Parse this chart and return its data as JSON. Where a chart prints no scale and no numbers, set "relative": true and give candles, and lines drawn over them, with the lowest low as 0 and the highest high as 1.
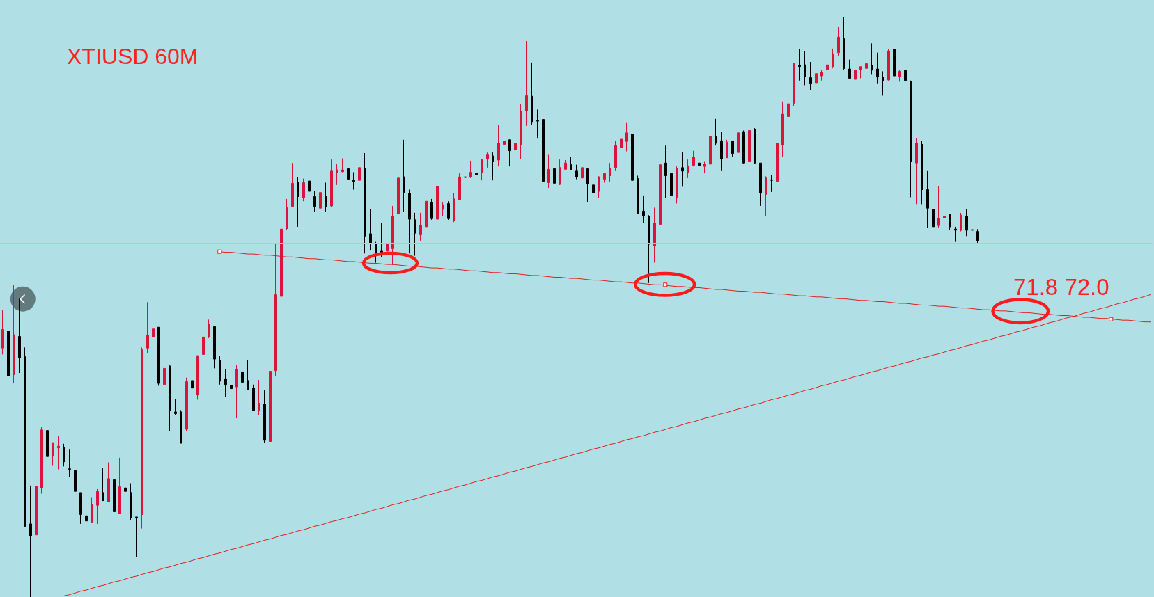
{
  "chart_data": {
    "type": "candlestick",
    "title": "XTIUSD 60M",
    "relative": true,
    "categories": [
      null,
      null,
      null,
      null,
      null,
      null,
      null,
      null,
      null,
      null,
      null,
      null,
      null,
      null,
      null,
      null,
      null,
      null,
      null,
      null,
      null,
      null,
      null,
      null,
      null,
      null,
      null,
      null,
      null,
      null,
      null,
      null,
      null,
      null,
      null,
      null,
      null,
      null,
      null,
      null,
      null,
      null,
      null,
      null,
      null,
      null,
      null,
      null,
      null,
      null,
      null,
      null,
      null,
      null,
      null,
      null,
      null,
      null,
      null,
      null,
      null,
      null,
      null,
      null,
      null,
      null,
      null,
      null,
      null,
      null,
      null,
      null,
      null,
      null,
      null,
      null,
      null,
      null,
      null,
      null,
      null,
      null,
      null,
      null,
      null,
      null,
      null,
      null,
      null,
      null,
      null,
      null,
      null,
      null,
      null,
      null,
      null,
      null,
      null,
      null,
      null,
      null,
      null,
      null,
      null,
      null,
      null,
      null,
      null,
      null,
      null,
      null,
      null,
      null,
      null,
      null,
      null,
      null,
      null,
      null,
      null,
      null,
      null,
      null,
      null,
      null,
      null,
      null,
      null,
      null,
      null,
      null,
      null,
      null,
      null,
      null,
      null,
      null,
      null,
      null,
      null,
      null,
      null,
      null,
      null,
      null,
      null,
      null,
      null,
      null,
      null,
      null,
      null,
      null,
      null,
      null,
      null,
      null,
      null,
      null,
      null,
      null,
      null,
      null,
      null,
      null,
      null,
      null,
      null,
      null,
      null,
      null,
      null,
      null,
      null,
      null,
      null,
      null,
      null,
      null,
      null,
      null,
      null,
      null,
      null,
      null,
      null,
      null,
      null,
      null,
      null,
      null,
      null,
      null,
      null,
      null,
      null,
      null,
      null,
      null,
      null,
      null,
      null,
      null,
      null,
      null,
      null
    ],
    "ohlc": [
      [
        0.429,
        0.494,
        0.418,
        0.461
      ],
      [
        0.458,
        0.476,
        0.381,
        0.381
      ],
      [
        0.383,
        0.538,
        0.368,
        0.452
      ],
      [
        0.449,
        0.514,
        0.386,
        0.412
      ],
      [
        0.414,
        0.43,
        0.12,
        0.122
      ],
      [
        0.126,
        0.192,
        0,
        0.105
      ],
      [
        0.107,
        0.208,
        0.107,
        0.191
      ],
      [
        0.188,
        0.293,
        0.178,
        0.288
      ],
      [
        0.287,
        0.304,
        0.242,
        0.242
      ],
      [
        0.244,
        0.266,
        0.226,
        0.266
      ],
      [
        0.257,
        0.278,
        0.22,
        0.26
      ],
      [
        0.258,
        0.264,
        0.225,
        0.233
      ],
      [
        0.221,
        0.254,
        0.207,
        0.22
      ],
      [
        0.218,
        0.232,
        0.172,
        0.182
      ],
      [
        0.18,
        0.18,
        0.126,
        0.142
      ],
      [
        0.14,
        0.148,
        0.108,
        0.131
      ],
      [
        0.129,
        0.172,
        0.129,
        0.16
      ],
      [
        0.158,
        0.186,
        0.126,
        0.182
      ],
      [
        0.18,
        0.222,
        0.166,
        0.166
      ],
      [
        0.164,
        0.232,
        0.164,
        0.204
      ],
      [
        0.202,
        0.228,
        0.138,
        0.147
      ],
      [
        0.144,
        0.24,
        0.144,
        0.19
      ],
      [
        0.188,
        0.218,
        0.156,
        0.182
      ],
      [
        0.18,
        0.196,
        0.132,
        0.136
      ],
      [
        0.138,
        0.138,
        0.069,
        0.137
      ],
      [
        0.142,
        0.43,
        0.118,
        0.426
      ],
      [
        0.429,
        0.508,
        0.42,
        0.451
      ],
      [
        0.448,
        0.478,
        0.426,
        0.462
      ],
      [
        0.465,
        0.465,
        0.364,
        0.368
      ],
      [
        0.366,
        0.404,
        0.348,
        0.394
      ],
      [
        0.398,
        0.399,
        0.286,
        0.321
      ],
      [
        0.319,
        0.341,
        0.314,
        0.316
      ],
      [
        0.319,
        0.322,
        0.265,
        0.265
      ],
      [
        0.289,
        0.378,
        0.286,
        0.371
      ],
      [
        0.373,
        0.389,
        0.346,
        0.36
      ],
      [
        0.348,
        0.416,
        0.34,
        0.416
      ],
      [
        0.418,
        0.482,
        0.418,
        0.448
      ],
      [
        0.448,
        0.478,
        0.446,
        0.47
      ],
      [
        0.466,
        0.466,
        0.394,
        0.41
      ],
      [
        0.408,
        0.416,
        0.366,
        0.372
      ],
      [
        0.376,
        0.392,
        0.345,
        0.366
      ],
      [
        0.365,
        0.404,
        0.356,
        0.359
      ],
      [
        0.362,
        0.4,
        0.308,
        0.392
      ],
      [
        0.388,
        0.408,
        0.338,
        0.37
      ],
      [
        0.373,
        0.408,
        0.357,
        0.357
      ],
      [
        0.36,
        0.366,
        0.321,
        0.321
      ],
      [
        0.322,
        0.374,
        0.314,
        0.334
      ],
      [
        0.332,
        0.356,
        0.265,
        0.27
      ],
      [
        0.268,
        0.414,
        0.206,
        0.389
      ],
      [
        0.39,
        0.61,
        0.381,
        0.521
      ],
      [
        0.518,
        0.641,
        0.485,
        0.634
      ],
      [
        0.635,
        0.686,
        0.632,
        0.671
      ],
      [
        0.673,
        0.748,
        0.673,
        0.713
      ],
      [
        0.714,
        0.724,
        0.638,
        0.69
      ],
      [
        0.688,
        0.721,
        0.682,
        0.714
      ],
      [
        0.717,
        0.718,
        0.689,
        0.699
      ],
      [
        0.69,
        0.7,
        0.664,
        0.673
      ],
      [
        0.67,
        0.7,
        0.665,
        0.697
      ],
      [
        0.69,
        0.714,
        0.664,
        0.673
      ],
      [
        0.674,
        0.754,
        0.672,
        0.734
      ],
      [
        0.731,
        0.746,
        0.71,
        0.736
      ],
      [
        0.733,
        0.756,
        0.732,
        0.736
      ],
      [
        0.738,
        0.74,
        0.718,
        0.72
      ],
      [
        0.718,
        0.732,
        0.702,
        0.716
      ],
      [
        0.718,
        0.756,
        0.714,
        0.74
      ],
      [
        0.738,
        0.765,
        0.592,
        0.622
      ],
      [
        0.626,
        0.669,
        0.598,
        0.609
      ],
      [
        0.608,
        0.612,
        0.576,
        0.594
      ],
      [
        0.596,
        0.644,
        0.586,
        0.594
      ],
      [
        0.596,
        0.63,
        0.592,
        0.608
      ],
      [
        0.6,
        0.674,
        0.572,
        0.656
      ],
      [
        0.66,
        0.75,
        0.614,
        0.722
      ],
      [
        0.724,
        0.788,
        0.664,
        0.697
      ],
      [
        0.696,
        0.702,
        0.592,
        0.651
      ],
      [
        0.65,
        0.662,
        0.588,
        0.627
      ],
      [
        0.624,
        0.662,
        0.614,
        0.641
      ],
      [
        0.638,
        0.686,
        0.618,
        0.682
      ],
      [
        0.68,
        0.686,
        0.65,
        0.652
      ],
      [
        0.651,
        0.73,
        0.642,
        0.708
      ],
      [
        0.668,
        0.68,
        0.657,
        0.676
      ],
      [
        0.678,
        0.682,
        0.65,
        0.652
      ],
      [
        0.648,
        0.696,
        0.646,
        0.686
      ],
      [
        0.684,
        0.73,
        0.684,
        0.724
      ],
      [
        0.724,
        0.733,
        0.712,
        0.723
      ],
      [
        0.724,
        0.752,
        0.722,
        0.732
      ],
      [
        0.73,
        0.752,
        0.722,
        0.728
      ],
      [
        0.731,
        0.754,
        0.718,
        0.754
      ],
      [
        0.755,
        0.766,
        0.74,
        0.762
      ],
      [
        0.76,
        0.766,
        0.718,
        0.75
      ],
      [
        0.753,
        0.813,
        0.742,
        0.782
      ],
      [
        0.78,
        0.806,
        0.769,
        0.786
      ],
      [
        0.788,
        0.788,
        0.742,
        0.769
      ],
      [
        0.771,
        0.794,
        0.721,
        0.782
      ],
      [
        0.78,
        0.85,
        0.755,
        0.837
      ],
      [
        0.838,
        0.958,
        0.812,
        0.864
      ],
      [
        0.863,
        0.921,
        0.814,
        0.818
      ],
      [
        0.821,
        0.84,
        0.79,
        0.82
      ],
      [
        0.823,
        0.847,
        0.714,
        0.716
      ],
      [
        0.714,
        0.762,
        0.705,
        0.737
      ],
      [
        0.738,
        0.746,
        0.677,
        0.713
      ],
      [
        0.711,
        0.754,
        0.71,
        0.74
      ],
      [
        0.737,
        0.753,
        0.737,
        0.748
      ],
      [
        0.745,
        0.758,
        0.736,
        0.736
      ],
      [
        0.734,
        0.745,
        0.72,
        0.724
      ],
      [
        0.722,
        0.751,
        0.721,
        0.74
      ],
      [
        0.738,
        0.738,
        0.681,
        0.712
      ],
      [
        0.71,
        0.72,
        0.689,
        0.696
      ],
      [
        0.699,
        0.725,
        0.688,
        0.724
      ],
      [
        0.72,
        0.73,
        0.714,
        0.73
      ],
      [
        0.726,
        0.748,
        0.716,
        0.738
      ],
      [
        0.74,
        0.786,
        0.734,
        0.778
      ],
      [
        0.774,
        0.794,
        0.758,
        0.789
      ],
      [
        0.785,
        0.817,
        0.768,
        0.8
      ],
      [
        0.798,
        0.798,
        0.709,
        0.718
      ],
      [
        0.721,
        0.726,
        0.661,
        0.661
      ],
      [
        0.665,
        0.692,
        0.644,
        0.657
      ],
      [
        0.656,
        0.658,
        0.541,
        0.608
      ],
      [
        0.605,
        0.671,
        0.576,
        0.644
      ],
      [
        0.642,
        0.764,
        0.616,
        0.745
      ],
      [
        0.748,
        0.778,
        0.688,
        0.726
      ],
      [
        0.73,
        0.73,
        0.67,
        0.692
      ],
      [
        0.689,
        0.742,
        0.678,
        0.738
      ],
      [
        0.74,
        0.767,
        0.707,
        0.734
      ],
      [
        0.731,
        0.754,
        0.722,
        0.743
      ],
      [
        0.744,
        0.769,
        0.742,
        0.758
      ],
      [
        0.748,
        0.754,
        0.734,
        0.744
      ],
      [
        0.742,
        0.75,
        0.73,
        0.746
      ],
      [
        0.746,
        0.806,
        0.742,
        0.794
      ],
      [
        0.794,
        0.824,
        0.778,
        0.782
      ],
      [
        0.786,
        0.802,
        0.734,
        0.755
      ],
      [
        0.757,
        0.788,
        0.757,
        0.784
      ],
      [
        0.786,
        0.786,
        0.758,
        0.764
      ],
      [
        0.766,
        0.802,
        0.75,
        0.8
      ],
      [
        0.802,
        0.804,
        0.746,
        0.748
      ],
      [
        0.75,
        0.804,
        0.75,
        0.804
      ],
      [
        0.806,
        0.808,
        0.746,
        0.748
      ],
      [
        0.748,
        0.748,
        0.674,
        0.696
      ],
      [
        0.694,
        0.725,
        0.656,
        0.722
      ],
      [
        0.719,
        0.727,
        0.698,
        0.718
      ],
      [
        0.716,
        0.799,
        0.702,
        0.782
      ],
      [
        0.779,
        0.854,
        0.758,
        0.832
      ],
      [
        0.828,
        0.866,
        0.662,
        0.85
      ],
      [
        0.851,
        0.919,
        0.846,
        0.919
      ],
      [
        0.916,
        0.944,
        0.89,
        0.914
      ],
      [
        0.917,
        0.941,
        0.882,
        0.897
      ],
      [
        0.895,
        0.922,
        0.873,
        0.884
      ],
      [
        0.885,
        0.906,
        0.88,
        0.902
      ],
      [
        0.898,
        0.908,
        0.89,
        0.904
      ],
      [
        0.909,
        0.922,
        0.904,
        0.917
      ],
      [
        0.914,
        0.945,
        0.911,
        0.936
      ],
      [
        0.938,
        0.982,
        0.933,
        0.965
      ],
      [
        0.962,
        1,
        0.909,
        0.911
      ],
      [
        0.91,
        0.926,
        0.894,
        0.894
      ],
      [
        0.892,
        0.912,
        0.873,
        0.908
      ],
      [
        0.909,
        0.914,
        0.894,
        0.914
      ],
      [
        0.911,
        0.93,
        0.902,
        0.919
      ],
      [
        0.916,
        0.954,
        0.9,
        0.908
      ],
      [
        0.91,
        0.938,
        0.884,
        0.896
      ],
      [
        0.895,
        0.906,
        0.864,
        0.89
      ],
      [
        0.891,
        0.944,
        0.89,
        0.941
      ],
      [
        0.944,
        0.947,
        0.888,
        0.898
      ],
      [
        0.897,
        0.909,
        0.888,
        0.906
      ],
      [
        0.908,
        0.922,
        0.844,
        0.89
      ],
      [
        0.889,
        0.89,
        0.689,
        0.75
      ],
      [
        0.748,
        0.791,
        0.677,
        0.782
      ],
      [
        0.78,
        0.786,
        0.677,
        0.702
      ],
      [
        0.702,
        0.734,
        0.636,
        0.67
      ],
      [
        0.668,
        0.67,
        0.606,
        0.638
      ],
      [
        0.64,
        0.708,
        0.636,
        0.652
      ],
      [
        0.653,
        0.679,
        0.644,
        0.656
      ],
      [
        0.66,
        0.66,
        0.632,
        0.638
      ],
      [
        0.634,
        0.638,
        0.612,
        0.632
      ],
      [
        0.632,
        0.662,
        0.63,
        0.658
      ],
      [
        0.656,
        0.668,
        0.622,
        0.632
      ],
      [
        0.633,
        0.638,
        0.592,
        0.632
      ],
      [
        0.63,
        0.634,
        0.609,
        0.614
      ],
      null,
      null,
      null,
      null,
      null,
      null,
      null,
      null,
      null,
      null,
      null,
      null,
      null,
      null,
      null,
      null,
      null,
      null,
      null,
      null,
      null,
      null,
      null,
      null,
      null,
      null,
      null,
      null,
      null,
      null,
      null
    ],
    "colors": [
      "#dc143c",
      "#000000",
      "#dc143c",
      "#000000",
      "#000000",
      "#000000",
      "#dc143c",
      "#dc143c",
      "#000000",
      "#dc143c",
      "#dc143c",
      "#000000",
      "#000000",
      "#000000",
      "#000000",
      "#000000",
      "#dc143c",
      "#dc143c",
      "#000000",
      "#dc143c",
      "#000000",
      "#dc143c",
      "#000000",
      "#000000",
      "#000000",
      "#dc143c",
      "#dc143c",
      "#dc143c",
      "#000000",
      "#dc143c",
      "#000000",
      "#000000",
      "#000000",
      "#dc143c",
      "#000000",
      "#dc143c",
      "#dc143c",
      "#dc143c",
      "#000000",
      "#000000",
      "#000000",
      "#000000",
      "#dc143c",
      "#000000",
      "#000000",
      "#000000",
      "#dc143c",
      "#000000",
      "#dc143c",
      "#dc143c",
      "#dc143c",
      "#dc143c",
      "#dc143c",
      "#000000",
      "#dc143c",
      "#000000",
      "#000000",
      "#dc143c",
      "#000000",
      "#dc143c",
      "#dc143c",
      "#dc143c",
      "#000000",
      "#000000",
      "#dc143c",
      "#000000",
      "#000000",
      "#000000",
      "#000000",
      "#dc143c",
      "#dc143c",
      "#dc143c",
      "#000000",
      "#000000",
      "#000000",
      "#dc143c",
      "#dc143c",
      "#000000",
      "#dc143c",
      "#dc143c",
      "#000000",
      "#dc143c",
      "#dc143c",
      "#000000",
      "#dc143c",
      "#000000",
      "#dc143c",
      "#dc143c",
      "#000000",
      "#dc143c",
      "#dc143c",
      "#000000",
      "#dc143c",
      "#dc143c",
      "#dc143c",
      "#000000",
      "#000000",
      "#000000",
      "#dc143c",
      "#000000",
      "#dc143c",
      "#dc143c",
      "#000000",
      "#000000",
      "#dc143c",
      "#000000",
      "#000000",
      "#dc143c",
      "#dc143c",
      "#dc143c",
      "#dc143c",
      "#dc143c",
      "#dc143c",
      "#000000",
      "#000000",
      "#000000",
      "#000000",
      "#dc143c",
      "#dc143c",
      "#000000",
      "#000000",
      "#dc143c",
      "#000000",
      "#dc143c",
      "#dc143c",
      "#000000",
      "#dc143c",
      "#dc143c",
      "#000000",
      "#000000",
      "#dc143c",
      "#000000",
      "#dc143c",
      "#000000",
      "#dc143c",
      "#000000",
      "#000000",
      "#dc143c",
      "#000000",
      "#dc143c",
      "#dc143c",
      "#dc143c",
      "#dc143c",
      "#000000",
      "#000000",
      "#000000",
      "#dc143c",
      "#dc143c",
      "#dc143c",
      "#dc143c",
      "#dc143c",
      "#000000",
      "#000000",
      "#dc143c",
      "#dc143c",
      "#dc143c",
      "#000000",
      "#000000",
      "#000000",
      "#dc143c",
      "#000000",
      "#dc143c",
      "#000000",
      "#000000",
      "#dc143c",
      "#000000",
      "#000000",
      "#000000",
      "#dc143c",
      "#dc143c",
      "#000000",
      "#000000",
      "#dc143c",
      "#000000",
      "#000000",
      "#000000",
      null,
      null,
      null,
      null,
      null,
      null,
      null,
      null,
      null,
      null,
      null,
      null,
      null,
      null,
      null,
      null,
      null,
      null,
      null,
      null,
      null,
      null,
      null,
      null,
      null,
      null,
      null,
      null,
      null,
      null,
      null
    ],
    "series": [
      {
        "type": "line",
        "color": "#e41e1e",
        "values": [
          null,
          null,
          null,
          null,
          null,
          null,
          null,
          null,
          null,
          null,
          null,
          0.002,
          0.004,
          0.007,
          0.01,
          0.012,
          0.015,
          0.018,
          0.02,
          0.023,
          0.026,
          0.028,
          0.031,
          0.034,
          0.036,
          0.039,
          0.042,
          0.044,
          0.047,
          0.05,
          0.052,
          0.055,
          0.058,
          0.06,
          0.063,
          0.066,
          0.068,
          0.071,
          0.074,
          0.076,
          0.079,
          0.082,
          0.084,
          0.087,
          0.09,
          0.092,
          0.095,
          0.098,
          0.1,
          0.103,
          0.106,
          0.108,
          0.111,
          0.114,
          0.116,
          0.119,
          0.122,
          0.124,
          0.127,
          0.13,
          0.132,
          0.135,
          0.137,
          0.14,
          0.143,
          0.145,
          0.148,
          0.151,
          0.153,
          0.156,
          0.159,
          0.161,
          0.164,
          0.167,
          0.169,
          0.172,
          0.175,
          0.177,
          0.18,
          0.183,
          0.185,
          0.188,
          0.191,
          0.193,
          0.196,
          0.199,
          0.201,
          0.204,
          0.207,
          0.209,
          0.212,
          0.215,
          0.217,
          0.22,
          0.223,
          0.225,
          0.228,
          0.231,
          0.233,
          0.236,
          0.239,
          0.241,
          0.244,
          0.247,
          0.249,
          0.252,
          0.255,
          0.257,
          0.26,
          0.263,
          0.265,
          0.268,
          0.271,
          0.273,
          0.276,
          0.278,
          0.281,
          0.284,
          0.286,
          0.289,
          0.292,
          0.294,
          0.297,
          0.3,
          0.302,
          0.305,
          0.308,
          0.31,
          0.313,
          0.316,
          0.318,
          0.321,
          0.324,
          0.326,
          0.329,
          0.332,
          0.334,
          0.337,
          0.34,
          0.342,
          0.345,
          0.348,
          0.35,
          0.353,
          0.356,
          0.358,
          0.361,
          0.364,
          0.366,
          0.369,
          0.372,
          0.374,
          0.377,
          0.38,
          0.382,
          0.385,
          0.388,
          0.39,
          0.393,
          0.396,
          0.398,
          0.401,
          0.404,
          0.406,
          0.409,
          0.412,
          0.414,
          0.417,
          0.419,
          0.422,
          0.425,
          0.427,
          0.43,
          0.433,
          0.435,
          0.438,
          0.441,
          0.443,
          0.446,
          0.449,
          0.451,
          0.454,
          0.457,
          0.459,
          0.462,
          0.465,
          0.467,
          0.47,
          0.473,
          0.475,
          0.478,
          0.481,
          0.483,
          0.486,
          0.489,
          0.491,
          0.494,
          0.497,
          0.499,
          0.502,
          0.505,
          0.507,
          0.51,
          0.513,
          0.515,
          0.518,
          0.521
        ]
      },
      {
        "type": "line",
        "color": "#e41e1e",
        "values": [
          null,
          null,
          null,
          null,
          null,
          null,
          null,
          null,
          null,
          null,
          null,
          null,
          null,
          null,
          null,
          null,
          null,
          null,
          null,
          null,
          null,
          null,
          null,
          null,
          null,
          null,
          null,
          null,
          null,
          null,
          null,
          null,
          null,
          null,
          null,
          null,
          null,
          null,
          null,
          0.595,
          0.594,
          0.594,
          0.593,
          0.592,
          0.591,
          0.591,
          0.59,
          0.589,
          0.589,
          0.588,
          0.587,
          0.586,
          0.586,
          0.585,
          0.584,
          0.583,
          0.583,
          0.582,
          0.581,
          0.581,
          0.58,
          0.579,
          0.578,
          0.578,
          0.577,
          0.576,
          0.575,
          0.575,
          0.574,
          0.573,
          0.573,
          0.572,
          0.571,
          0.57,
          0.57,
          0.569,
          0.568,
          0.567,
          0.567,
          0.566,
          0.565,
          0.565,
          0.564,
          0.563,
          0.562,
          0.562,
          0.561,
          0.56,
          0.559,
          0.559,
          0.558,
          0.557,
          0.557,
          0.556,
          0.555,
          0.554,
          0.554,
          0.553,
          0.552,
          0.551,
          0.551,
          0.55,
          0.549,
          0.549,
          0.548,
          0.547,
          0.546,
          0.546,
          0.545,
          0.544,
          0.543,
          0.543,
          0.542,
          0.541,
          0.541,
          0.54,
          0.539,
          0.538,
          0.538,
          0.537,
          0.536,
          0.535,
          0.535,
          0.534,
          0.533,
          0.533,
          0.532,
          0.531,
          0.53,
          0.53,
          0.529,
          0.528,
          0.527,
          0.527,
          0.526,
          0.525,
          0.525,
          0.524,
          0.523,
          0.522,
          0.522,
          0.521,
          0.52,
          0.519,
          0.519,
          0.518,
          0.517,
          0.517,
          0.516,
          0.515,
          0.514,
          0.514,
          0.513,
          0.512,
          0.511,
          0.511,
          0.51,
          0.509,
          0.509,
          0.508,
          0.507,
          0.506,
          0.506,
          0.505,
          0.504,
          0.503,
          0.503,
          0.502,
          0.501,
          0.501,
          0.5,
          0.499,
          0.498,
          0.498,
          0.497,
          0.496,
          0.495,
          0.495,
          0.494,
          0.493,
          0.493,
          0.492,
          0.491,
          0.49,
          0.49,
          0.489,
          0.488,
          0.487,
          0.487,
          0.486,
          0.485,
          0.485,
          0.484,
          0.483,
          0.482,
          0.482,
          0.481,
          0.48,
          0.48,
          0.479,
          0.478,
          0.477,
          0.477,
          0.476,
          0.475,
          0.474,
          0.474
        ]
      }
    ],
    "ref_lines": [
      {
        "axis": "y",
        "value": 0.613,
        "color": "#c4c4c4"
      }
    ],
    "annotations": [
      "71.8 72.0"
    ]
  }
}
